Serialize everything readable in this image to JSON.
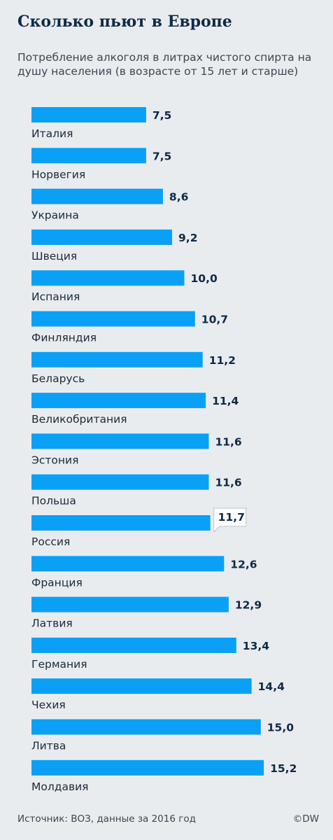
{
  "header": {
    "title": "Сколько пьют в Европе",
    "subtitle": "Потребление алкоголя в литрах чистого спирта на душу населения (в возрасте от 15 лет и старше)"
  },
  "chart_data": {
    "type": "bar",
    "orientation": "horizontal",
    "categories": [
      "Италия",
      "Норвегия",
      "Украина",
      "Швеция",
      "Испания",
      "Финляндия",
      "Беларусь",
      "Великобритания",
      "Эстония",
      "Польша",
      "Россия",
      "Франция",
      "Латвия",
      "Германия",
      "Чехия",
      "Литва",
      "Молдавия"
    ],
    "values": [
      7.5,
      7.5,
      8.6,
      9.2,
      10.0,
      10.7,
      11.2,
      11.4,
      11.6,
      11.6,
      11.7,
      12.6,
      12.9,
      13.4,
      14.4,
      15.0,
      15.2
    ],
    "value_labels": [
      "7,5",
      "7,5",
      "8,6",
      "9,2",
      "10,0",
      "10,7",
      "11,2",
      "11,4",
      "11,6",
      "11,6",
      "11,7",
      "12,6",
      "12,9",
      "13,4",
      "14,4",
      "15,0",
      "15,2"
    ],
    "highlight": "Россия",
    "bar_color": "#0aa0f5",
    "value_color": "#0e2a47",
    "label_color": "#1a2a3a"
  },
  "footer": {
    "source": "Источник: ВОЗ, данные за 2016 год",
    "brand": "©DW"
  }
}
